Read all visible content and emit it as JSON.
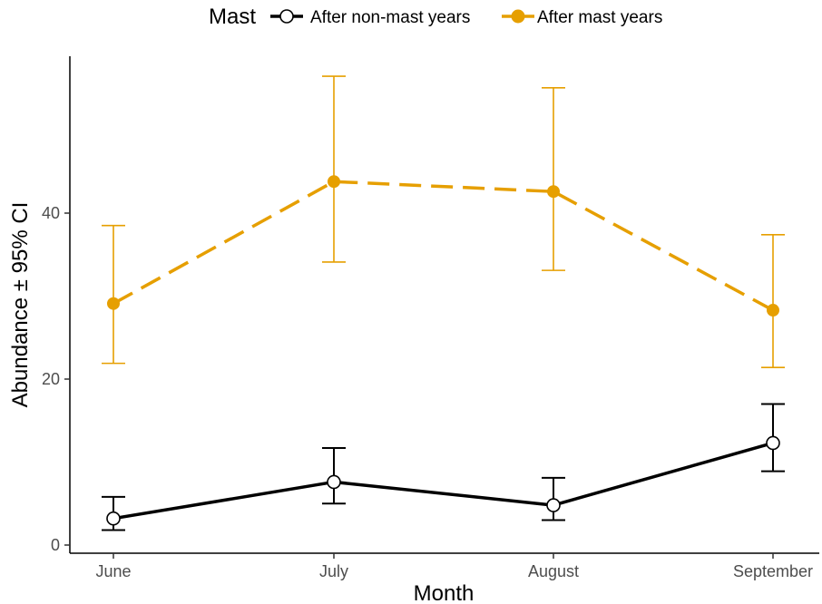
{
  "chart_data": {
    "type": "line",
    "xlabel": "Month",
    "ylabel": "Abundance ± 95% CI",
    "categories": [
      "June",
      "July",
      "August",
      "September"
    ],
    "ylim": [
      0,
      60
    ],
    "yticks": [
      0,
      20,
      40
    ],
    "grid": false,
    "legend": {
      "title": "Mast",
      "position": "top"
    },
    "series": [
      {
        "name": "After non-mast years",
        "color": "#000000",
        "line_style": "solid",
        "marker": "open-circle",
        "values": [
          3.2,
          7.6,
          4.8,
          12.3
        ],
        "ci_lower": [
          1.8,
          5.0,
          3.0,
          8.9
        ],
        "ci_upper": [
          5.8,
          11.7,
          8.1,
          17.0
        ]
      },
      {
        "name": "After mast years",
        "color": "#E69F00",
        "line_style": "dashed",
        "marker": "filled-circle",
        "values": [
          29.1,
          43.8,
          42.6,
          28.3
        ],
        "ci_lower": [
          21.9,
          34.1,
          33.1,
          21.4
        ],
        "ci_upper": [
          38.5,
          56.5,
          55.1,
          37.4
        ]
      }
    ]
  }
}
